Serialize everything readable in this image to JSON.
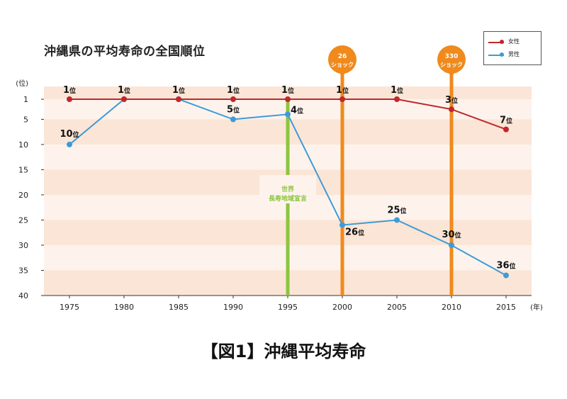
{
  "title": "沖縄県の平均寿命の全国順位",
  "caption": "【図1】沖縄平均寿命",
  "colors": {
    "female": "#c0282c",
    "male": "#3e9bd8",
    "shock": "#f08a1c",
    "declaration": "#8cc63f",
    "band_dark": "#fbe5d6",
    "band_light": "#fdf3ec"
  },
  "chart_data": {
    "type": "line",
    "x": [
      1975,
      1980,
      1985,
      1990,
      1995,
      2000,
      2005,
      2010,
      2015
    ],
    "xlabel": "(年)",
    "ylabel": "(位)",
    "ylim": [
      1,
      40
    ],
    "y_inverted": true,
    "y_ticks": [
      1,
      5,
      10,
      15,
      20,
      25,
      30,
      35,
      40
    ],
    "series": [
      {
        "name": "女性",
        "color_key": "female",
        "values": [
          1,
          1,
          1,
          1,
          1,
          1,
          1,
          3,
          7
        ],
        "labels": [
          "1位",
          "1位",
          "1位",
          "1位",
          "1位",
          "1位",
          "1位",
          "3位",
          "7位"
        ]
      },
      {
        "name": "男性",
        "color_key": "male",
        "values": [
          10,
          1,
          1,
          5,
          4,
          26,
          25,
          30,
          36
        ],
        "labels": [
          "10位",
          "",
          "",
          "5位",
          "4位",
          "26位",
          "25位",
          "30位",
          "36位"
        ]
      }
    ],
    "annotations": [
      {
        "x": 1995,
        "type": "vline",
        "color_key": "declaration",
        "text_lines": [
          "世界",
          "長寿地域宣言"
        ]
      },
      {
        "x": 2000,
        "type": "vline-bubble",
        "color_key": "shock",
        "text_lines": [
          "26",
          "ショック"
        ]
      },
      {
        "x": 2010,
        "type": "vline-bubble",
        "color_key": "shock",
        "text_lines": [
          "330",
          "ショック"
        ]
      }
    ],
    "legend": {
      "position": "top-right",
      "entries": [
        "女性",
        "男性"
      ]
    }
  }
}
